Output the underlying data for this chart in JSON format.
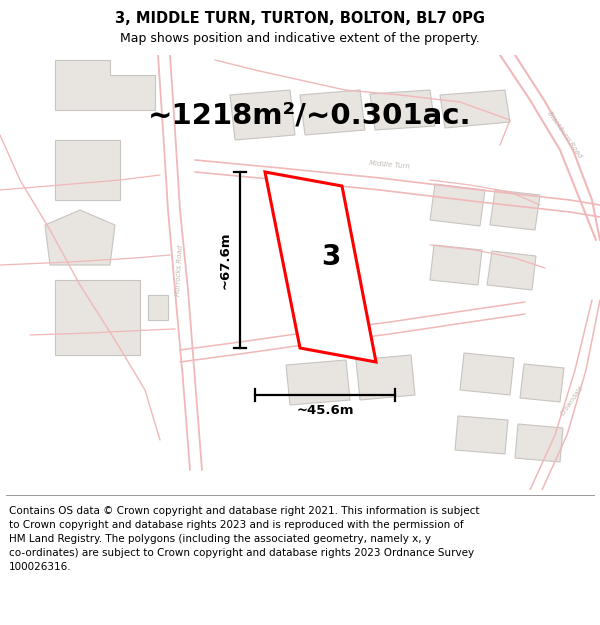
{
  "title": "3, MIDDLE TURN, TURTON, BOLTON, BL7 0PG",
  "subtitle": "Map shows position and indicative extent of the property.",
  "area_text": "~1218m²/~0.301ac.",
  "property_number": "3",
  "dim_height": "~67.6m",
  "dim_width": "~45.6m",
  "copyright_text": "Contains OS data © Crown copyright and database right 2021. This information is subject to Crown copyright and database rights 2023 and is reproduced with the permission of HM Land Registry. The polygons (including the associated geometry, namely x, y co-ordinates) are subject to Crown copyright and database rights 2023 Ordnance Survey 100026316.",
  "background_color": "#ffffff",
  "map_bg_color": "#ffffff",
  "road_color": "#f0b8b8",
  "building_fill": "#e8e4e0",
  "building_edge": "#c8c4c0",
  "property_fill": "#ffffff",
  "property_edge": "#ff0000",
  "road_label_color": "#c0b8b0",
  "title_fontsize": 10.5,
  "subtitle_fontsize": 9,
  "area_fontsize": 21,
  "number_fontsize": 20,
  "dim_fontsize": 9.5,
  "copyright_fontsize": 7.5
}
